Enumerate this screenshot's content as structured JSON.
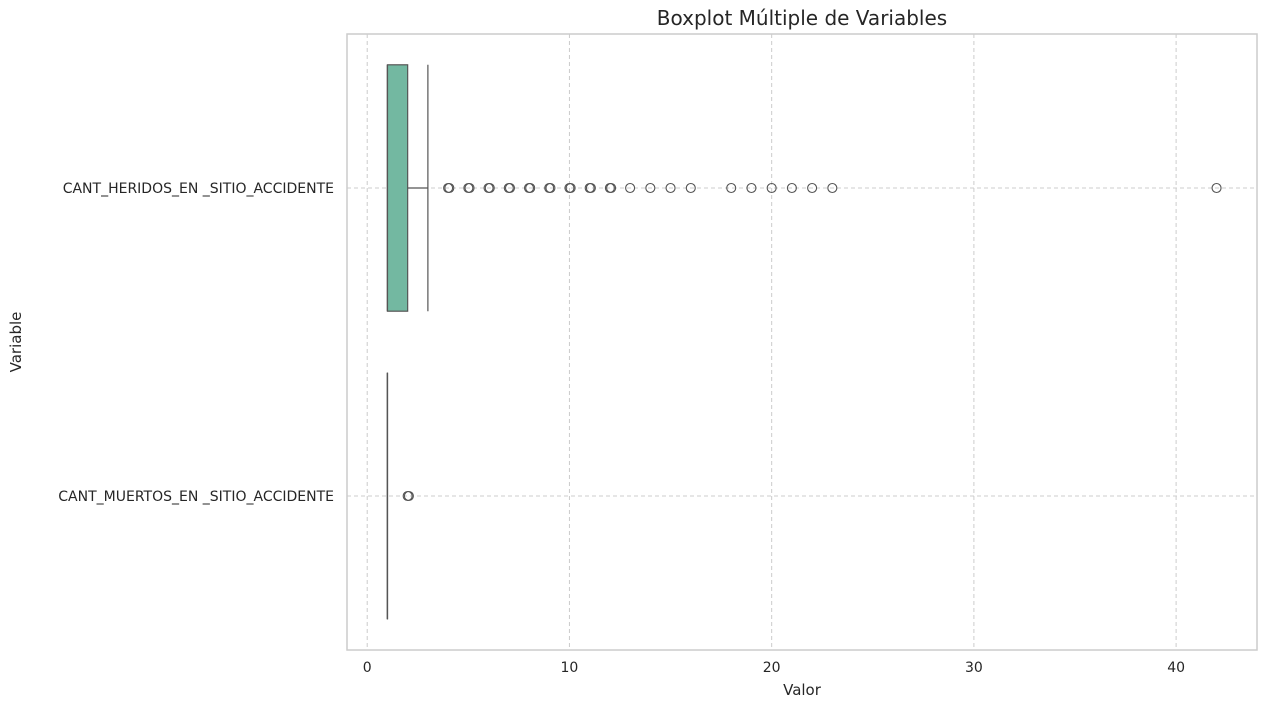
{
  "chart_data": {
    "type": "boxplot",
    "orientation": "horizontal",
    "title": "Boxplot Múltiple de Variables",
    "xlabel": "Valor",
    "ylabel": "Variable",
    "xlim": [
      -1,
      44
    ],
    "xticks": [
      0,
      10,
      20,
      30,
      40
    ],
    "grid": true,
    "box_color": "#73b8a1",
    "edge_color": "#555555",
    "series": [
      {
        "name": "CANT_HERIDOS_EN _SITIO_ACCIDENTE",
        "whisker_low": 1,
        "q1": 1,
        "median": 1,
        "q3": 2,
        "whisker_high": 3,
        "outliers": [
          4,
          5,
          6,
          7,
          8,
          9,
          10,
          11,
          12,
          13,
          14,
          15,
          16,
          18,
          19,
          20,
          21,
          22,
          23,
          42
        ]
      },
      {
        "name": "CANT_MUERTOS_EN _SITIO_ACCIDENTE",
        "whisker_low": 1,
        "q1": 1,
        "median": 1,
        "q3": 1,
        "whisker_high": 1,
        "outliers": [
          2
        ]
      }
    ]
  }
}
